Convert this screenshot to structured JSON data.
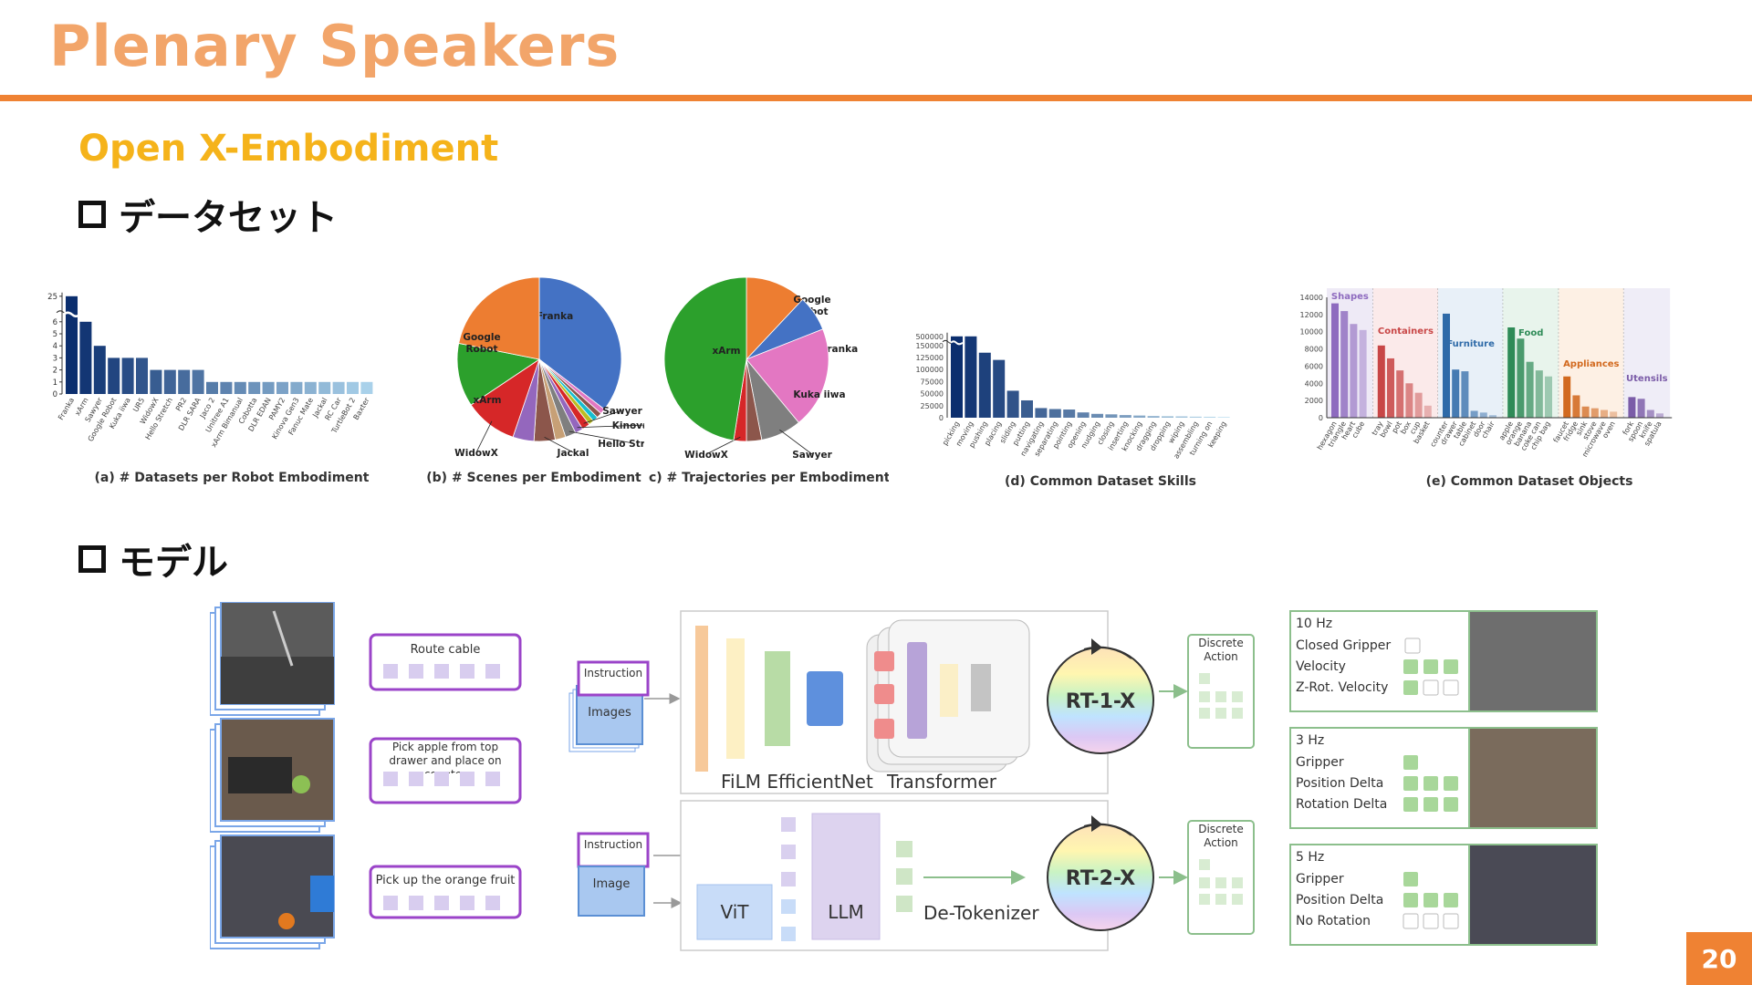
{
  "slide": {
    "title": "Plenary Speakers",
    "subtitle": "Open X-Embodiment",
    "bullet_dataset": "データセット",
    "bullet_model": "モデル",
    "page_number": "20"
  },
  "colors": {
    "title": "#f2a56a",
    "rule": "#ef8233",
    "subtitle": "#f5b31a",
    "page_badge": "#ef8233"
  },
  "chart_data": [
    {
      "type": "bar",
      "title": "(a) # Datasets per Robot Embodiment",
      "categories": [
        "Franka",
        "xArm",
        "Sawyer",
        "Google Robot",
        "Kuka iiwa",
        "UR5",
        "WidowX",
        "Hello Stretch",
        "PR2",
        "DLR SARA",
        "Jaco 2",
        "Unitree A1",
        "xArm Bimanual",
        "Cobotta",
        "DLR EDAN",
        "PAMY2",
        "Kinova Gen3",
        "Fanuc Mate",
        "Jackal",
        "RC Car",
        "TurtleBot 2",
        "Baxter"
      ],
      "values": [
        25,
        6,
        4,
        3,
        3,
        3,
        2,
        2,
        2,
        2,
        1,
        1,
        1,
        1,
        1,
        1,
        1,
        1,
        1,
        1,
        1,
        1
      ],
      "yticks": [
        "0",
        "1",
        "2",
        "3",
        "4",
        "5",
        "6",
        "25"
      ]
    },
    {
      "type": "pie",
      "title": "(b) # Scenes per Embodiment",
      "slices": [
        {
          "label": "Franka",
          "value": 34,
          "color": "#4472c4"
        },
        {
          "label": "",
          "value": 1,
          "color": "#e377c2"
        },
        {
          "label": "",
          "value": 1,
          "color": "#8c564b"
        },
        {
          "label": "",
          "value": 1,
          "color": "#17becf"
        },
        {
          "label": "",
          "value": 1,
          "color": "#bcbd22"
        },
        {
          "label": "Sawyer",
          "value": 1.5,
          "color": "#d62728"
        },
        {
          "label": "Kinova Gen3",
          "value": 1.5,
          "color": "#9467bd"
        },
        {
          "label": "Hello Stretch",
          "value": 2,
          "color": "#7f7f7f"
        },
        {
          "label": "",
          "value": 2,
          "color": "#c7a076"
        },
        {
          "label": "Jackal",
          "value": 4,
          "color": "#8c564b"
        },
        {
          "label": "",
          "value": 4,
          "color": "#9467bd"
        },
        {
          "label": "WidowX",
          "value": 10,
          "color": "#d62728"
        },
        {
          "label": "xArm",
          "value": 12,
          "color": "#2ca02c"
        },
        {
          "label": "Google Robot",
          "value": 21,
          "color": "#ed7d31"
        }
      ]
    },
    {
      "type": "pie",
      "title": "(c) # Trajectories per Embodiment",
      "slices": [
        {
          "label": "Google Robot",
          "value": 12,
          "color": "#ed7d31"
        },
        {
          "label": "Franka",
          "value": 7,
          "color": "#4472c4"
        },
        {
          "label": "Kuka iiwa",
          "value": 20,
          "color": "#e377c2"
        },
        {
          "label": "Sawyer",
          "value": 8,
          "color": "#7f7f7f"
        },
        {
          "label": "",
          "value": 3,
          "color": "#8c564b"
        },
        {
          "label": "WidowX",
          "value": 2.5,
          "color": "#d62728"
        },
        {
          "label": "xArm",
          "value": 47.5,
          "color": "#2ca02c"
        }
      ]
    },
    {
      "type": "bar",
      "title": "(d) Common Dataset Skills",
      "categories": [
        "picking",
        "moving",
        "pushing",
        "placing",
        "sliding",
        "putting",
        "navigating",
        "separating",
        "pointing",
        "opening",
        "nudging",
        "closing",
        "inserting",
        "knocking",
        "dragging",
        "dropping",
        "wiping",
        "assembling",
        "turning on",
        "keeping"
      ],
      "values": [
        500000,
        160000,
        135000,
        120000,
        56000,
        36000,
        20000,
        18000,
        17000,
        11000,
        8000,
        7000,
        5500,
        4500,
        3500,
        3000,
        2800,
        2200,
        2000,
        1500
      ],
      "yticks": [
        "0",
        "25000",
        "50000",
        "75000",
        "100000",
        "125000",
        "150000",
        "500000"
      ]
    },
    {
      "type": "bar",
      "title": "(e) Common Dataset Objects",
      "yticks": [
        "0",
        "2000",
        "4000",
        "6000",
        "8000",
        "10000",
        "12000",
        "14000"
      ],
      "ylim": [
        0,
        14000
      ],
      "groups": [
        {
          "name": "Shapes",
          "color": "#8e6bbf",
          "categories": [
            "hexagon",
            "triangle",
            "heart",
            "cube"
          ],
          "values": [
            13300,
            12400,
            10900,
            10200
          ]
        },
        {
          "name": "Containers",
          "color": "#c84646",
          "categories": [
            "tray",
            "bowl",
            "pot",
            "box",
            "cup",
            "basket"
          ],
          "values": [
            8400,
            6900,
            5500,
            4000,
            2900,
            1400
          ]
        },
        {
          "name": "Furniture",
          "color": "#2e6aa8",
          "categories": [
            "counter",
            "drawer",
            "table",
            "cabinet",
            "door",
            "chair"
          ],
          "values": [
            12100,
            5600,
            5400,
            800,
            600,
            300
          ]
        },
        {
          "name": "Food",
          "color": "#2e8b57",
          "categories": [
            "apple",
            "orange",
            "banana",
            "coke can",
            "chip bag"
          ],
          "values": [
            10500,
            9200,
            6500,
            5500,
            4800
          ]
        },
        {
          "name": "Appliances",
          "color": "#d2691e",
          "categories": [
            "faucet",
            "fridge",
            "sink",
            "stove",
            "microwave",
            "oven"
          ],
          "values": [
            4800,
            2600,
            1300,
            1100,
            900,
            700
          ]
        },
        {
          "name": "Utensils",
          "color": "#7b5ca8",
          "categories": [
            "fork",
            "spoon",
            "knife",
            "spatula"
          ],
          "values": [
            2400,
            2200,
            900,
            500
          ]
        }
      ]
    }
  ],
  "model": {
    "tasks": [
      "Route cable",
      "Pick apple from top drawer and place on counter",
      "Pick up the orange fruit"
    ],
    "rt1": {
      "instruction": "Instruction",
      "images": "Images",
      "film": "FiLM EfficientNet",
      "transformer": "Transformer",
      "name": "RT-1-X",
      "output": "Discrete Action"
    },
    "rt2": {
      "instruction": "Instruction",
      "image": "Image",
      "vit": "ViT",
      "llm": "LLM",
      "detok": "De-Tokenizer",
      "name": "RT-2-X",
      "output": "Discrete Action"
    },
    "action_spaces": [
      {
        "rate": "10 Hz",
        "lines": [
          "Closed Gripper",
          "Velocity",
          "Z-Rot. Velocity"
        ]
      },
      {
        "rate": "3 Hz",
        "lines": [
          "Gripper",
          "Position Delta",
          "Rotation Delta"
        ]
      },
      {
        "rate": "5 Hz",
        "lines": [
          "Gripper",
          "Position Delta",
          "No Rotation"
        ]
      }
    ]
  }
}
